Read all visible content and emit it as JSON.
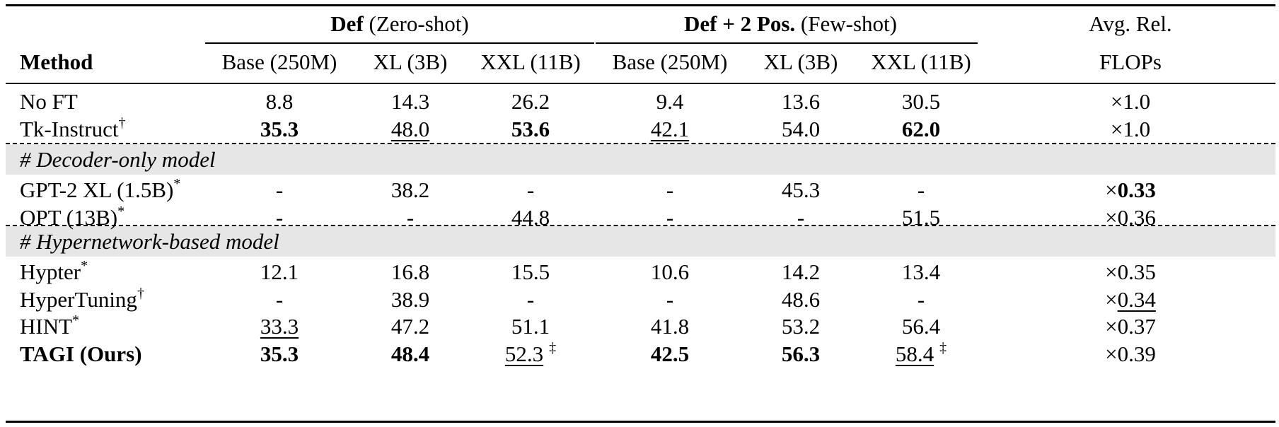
{
  "header": {
    "method": "Method",
    "group1_bold": "Def",
    "group1_rest": "(Zero-shot)",
    "group2_bold": "Def + 2 Pos.",
    "group2_rest": "(Few-shot)",
    "avg_line1": "Avg. Rel.",
    "avg_line2": "FLOPs",
    "columns": [
      "Base (250M)",
      "XL (3B)",
      "XXL (11B)",
      "Base (250M)",
      "XL (3B)",
      "XXL (11B)"
    ]
  },
  "groups": {
    "decoder": "# Decoder-only model",
    "hyper": "# Hypernetwork-based model"
  },
  "rows": [
    {
      "method": "No FT",
      "mark": "",
      "bold_method": false,
      "cells": [
        {
          "v": "8.8"
        },
        {
          "v": "14.3"
        },
        {
          "v": "26.2"
        },
        {
          "v": "9.4"
        },
        {
          "v": "13.6"
        },
        {
          "v": "30.5"
        }
      ],
      "flops_prefix": "×",
      "flops": "1.0",
      "flops_style": ""
    },
    {
      "method": "Tk-Instruct",
      "mark": "†",
      "bold_method": false,
      "cells": [
        {
          "v": "35.3",
          "s": "b"
        },
        {
          "v": "48.0",
          "s": "u"
        },
        {
          "v": "53.6",
          "s": "b"
        },
        {
          "v": "42.1",
          "s": "u"
        },
        {
          "v": "54.0"
        },
        {
          "v": "62.0",
          "s": "b"
        }
      ],
      "flops_prefix": "×",
      "flops": "1.0",
      "flops_style": ""
    },
    {
      "method": "GPT-2 XL (1.5B)",
      "mark": "*",
      "bold_method": false,
      "cells": [
        {
          "v": "-"
        },
        {
          "v": "38.2"
        },
        {
          "v": "-"
        },
        {
          "v": "-"
        },
        {
          "v": "45.3"
        },
        {
          "v": "-"
        }
      ],
      "flops_prefix": "×",
      "flops": "0.33",
      "flops_style": "b"
    },
    {
      "method": "OPT (13B)",
      "mark": "*",
      "bold_method": false,
      "cells": [
        {
          "v": "-"
        },
        {
          "v": "-"
        },
        {
          "v": "44.8"
        },
        {
          "v": "-"
        },
        {
          "v": "-"
        },
        {
          "v": "51.5"
        }
      ],
      "flops_prefix": "×",
      "flops": "0.36",
      "flops_style": ""
    },
    {
      "method": "Hypter",
      "mark": "*",
      "bold_method": false,
      "cells": [
        {
          "v": "12.1"
        },
        {
          "v": "16.8"
        },
        {
          "v": "15.5"
        },
        {
          "v": "10.6"
        },
        {
          "v": "14.2"
        },
        {
          "v": "13.4"
        }
      ],
      "flops_prefix": "×",
      "flops": "0.35",
      "flops_style": ""
    },
    {
      "method": "HyperTuning",
      "mark": "†",
      "bold_method": false,
      "cells": [
        {
          "v": "-"
        },
        {
          "v": "38.9"
        },
        {
          "v": "-"
        },
        {
          "v": "-"
        },
        {
          "v": "48.6"
        },
        {
          "v": "-"
        }
      ],
      "flops_prefix": "×",
      "flops": "0.34",
      "flops_style": "u"
    },
    {
      "method": "HINT",
      "mark": "*",
      "bold_method": false,
      "cells": [
        {
          "v": "33.3",
          "s": "u"
        },
        {
          "v": "47.2"
        },
        {
          "v": "51.1"
        },
        {
          "v": "41.8"
        },
        {
          "v": "53.2"
        },
        {
          "v": "56.4"
        }
      ],
      "flops_prefix": "×",
      "flops": "0.37",
      "flops_style": ""
    },
    {
      "method": "TAGI (Ours)",
      "mark": "",
      "bold_method": true,
      "cells": [
        {
          "v": "35.3",
          "s": "b"
        },
        {
          "v": "48.4",
          "s": "b"
        },
        {
          "v": "52.3",
          "s": "u",
          "mark": "‡"
        },
        {
          "v": "42.5",
          "s": "b"
        },
        {
          "v": "56.3",
          "s": "b"
        },
        {
          "v": "58.4",
          "s": "u",
          "mark": "‡"
        }
      ],
      "flops_prefix": "×",
      "flops": "0.39",
      "flops_style": ""
    }
  ]
}
